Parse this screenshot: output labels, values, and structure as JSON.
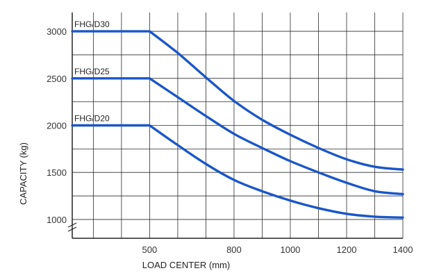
{
  "chart_data": {
    "type": "line",
    "xlabel": "LOAD CENTER (mm)",
    "ylabel": "CAPACITY (kg)",
    "x_ticks": [
      500,
      800,
      1000,
      1200,
      1400
    ],
    "y_ticks": [
      1000,
      1500,
      2000,
      2500,
      3000
    ],
    "xlim": [
      225,
      1400
    ],
    "ylim": [
      800,
      3200
    ],
    "grid": true,
    "line_color": "#1a56c8",
    "series": [
      {
        "name": "FHG/D30",
        "points": [
          [
            225,
            3000
          ],
          [
            500,
            3000
          ],
          [
            600,
            2770
          ],
          [
            700,
            2510
          ],
          [
            800,
            2260
          ],
          [
            900,
            2060
          ],
          [
            1000,
            1900
          ],
          [
            1100,
            1760
          ],
          [
            1200,
            1640
          ],
          [
            1300,
            1560
          ],
          [
            1400,
            1530
          ]
        ]
      },
      {
        "name": "FHG/D25",
        "points": [
          [
            225,
            2500
          ],
          [
            500,
            2500
          ],
          [
            600,
            2300
          ],
          [
            700,
            2100
          ],
          [
            800,
            1910
          ],
          [
            900,
            1760
          ],
          [
            1000,
            1620
          ],
          [
            1100,
            1500
          ],
          [
            1200,
            1390
          ],
          [
            1300,
            1300
          ],
          [
            1400,
            1270
          ]
        ]
      },
      {
        "name": "FHG/D20",
        "points": [
          [
            225,
            2000
          ],
          [
            500,
            2000
          ],
          [
            600,
            1790
          ],
          [
            700,
            1590
          ],
          [
            800,
            1420
          ],
          [
            900,
            1300
          ],
          [
            1000,
            1200
          ],
          [
            1100,
            1120
          ],
          [
            1200,
            1060
          ],
          [
            1300,
            1030
          ],
          [
            1400,
            1020
          ]
        ]
      }
    ]
  }
}
